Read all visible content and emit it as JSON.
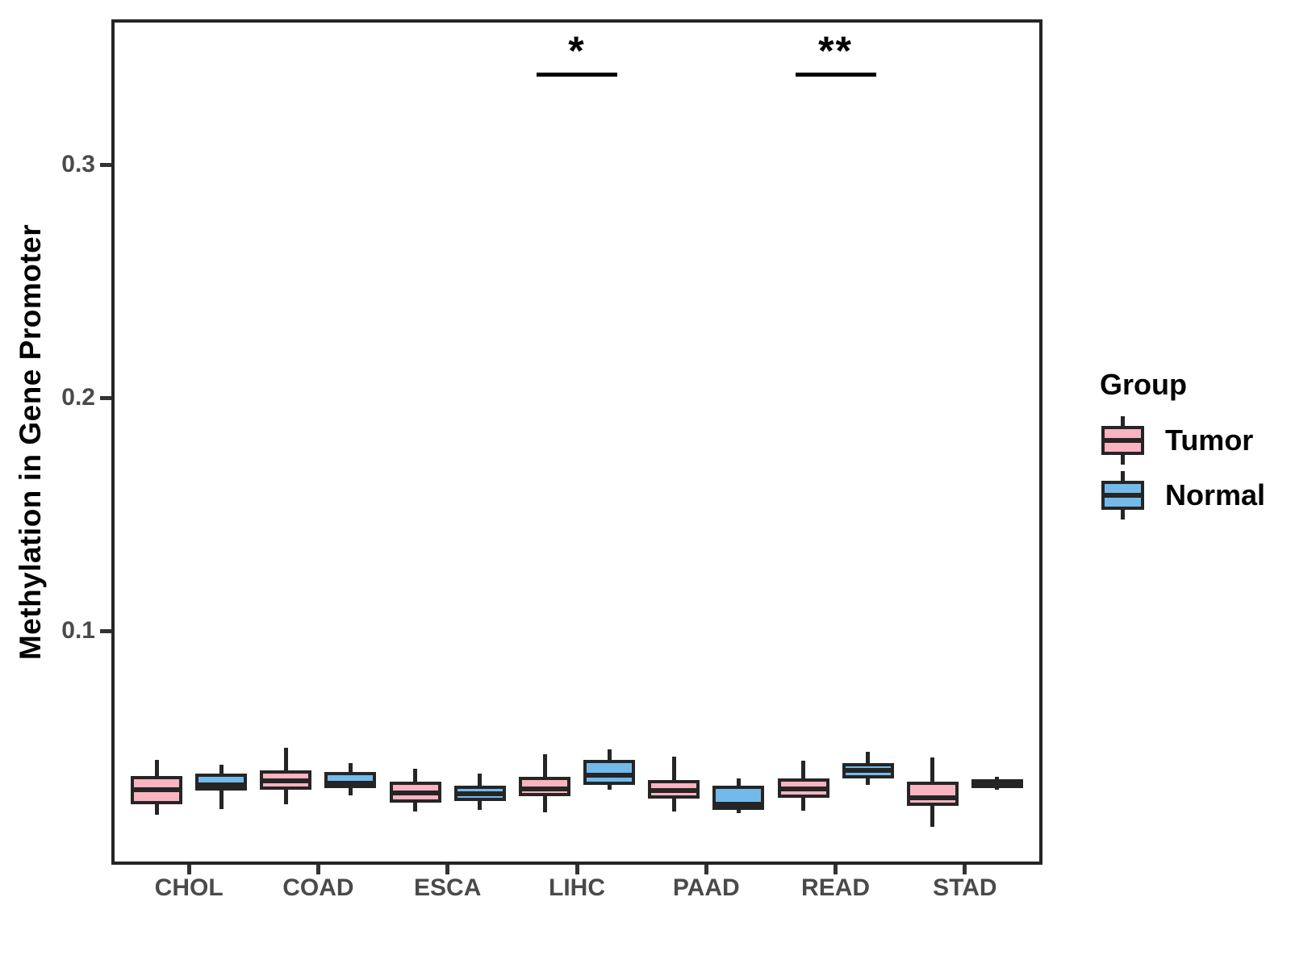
{
  "figure": {
    "y_axis_title": "Methylation in Gene Promoter",
    "legend": {
      "title": "Group",
      "items": [
        {
          "label": "Tumor",
          "color": "#FAB3C0"
        },
        {
          "label": "Normal",
          "color": "#73BAEB"
        }
      ]
    }
  },
  "style": {
    "background": "#ffffff",
    "box_border": "#252525",
    "axis_line_color": "#252525",
    "tick_mark_color": "#333333",
    "tick_label_color": "#4a4a4a",
    "title_color": "#000000",
    "tumor_fill": "#FAB3C0",
    "normal_fill": "#73BAEB"
  },
  "chart_data": {
    "type": "grouped_boxplot",
    "title": "",
    "xlabel": "",
    "ylabel": "Methylation in Gene Promoter",
    "categories": [
      "CHOL",
      "COAD",
      "ESCA",
      "LIHC",
      "PAAD",
      "READ",
      "STAD"
    ],
    "groups": [
      "Tumor",
      "Normal"
    ],
    "group_colors": {
      "Tumor": "#FAB3C0",
      "Normal": "#73BAEB"
    },
    "y_ticks": [
      0.1,
      0.2,
      0.3
    ],
    "ylim": [
      0.0,
      0.363
    ],
    "grid": false,
    "legend_position": "right",
    "series": [
      {
        "name": "Tumor",
        "boxes": [
          {
            "category": "CHOL",
            "min": 0.021,
            "q1": 0.0255,
            "median": 0.0318,
            "q3": 0.0377,
            "max": 0.0446
          },
          {
            "category": "COAD",
            "min": 0.0256,
            "q1": 0.0318,
            "median": 0.0356,
            "q3": 0.0401,
            "max": 0.0498
          },
          {
            "category": "ESCA",
            "min": 0.0225,
            "q1": 0.0263,
            "median": 0.0304,
            "q3": 0.0353,
            "max": 0.0408
          },
          {
            "category": "LIHC",
            "min": 0.0221,
            "q1": 0.029,
            "median": 0.0322,
            "q3": 0.0373,
            "max": 0.047
          },
          {
            "category": "PAAD",
            "min": 0.0225,
            "q1": 0.028,
            "median": 0.0315,
            "q3": 0.036,
            "max": 0.046
          },
          {
            "category": "READ",
            "min": 0.0228,
            "q1": 0.0284,
            "median": 0.0322,
            "q3": 0.0367,
            "max": 0.0443
          },
          {
            "category": "STAD",
            "min": 0.0159,
            "q1": 0.0249,
            "median": 0.0284,
            "q3": 0.0353,
            "max": 0.0456
          }
        ]
      },
      {
        "name": "Normal",
        "boxes": [
          {
            "category": "CHOL",
            "min": 0.0235,
            "q1": 0.0315,
            "median": 0.034,
            "q3": 0.0388,
            "max": 0.0426
          },
          {
            "category": "COAD",
            "min": 0.0294,
            "q1": 0.0325,
            "median": 0.0346,
            "q3": 0.0394,
            "max": 0.0433
          },
          {
            "category": "ESCA",
            "min": 0.0231,
            "q1": 0.027,
            "median": 0.03,
            "q3": 0.0336,
            "max": 0.0388
          },
          {
            "category": "LIHC",
            "min": 0.0318,
            "q1": 0.034,
            "median": 0.038,
            "q3": 0.0446,
            "max": 0.049
          },
          {
            "category": "PAAD",
            "min": 0.0218,
            "q1": 0.0231,
            "median": 0.0256,
            "q3": 0.0336,
            "max": 0.0367
          },
          {
            "category": "READ",
            "min": 0.0339,
            "q1": 0.0367,
            "median": 0.04,
            "q3": 0.0433,
            "max": 0.0481
          },
          {
            "category": "STAD",
            "min": 0.0318,
            "q1": 0.0325,
            "median": 0.0346,
            "q3": 0.0363,
            "max": 0.0374
          }
        ]
      }
    ],
    "annotations": [
      {
        "category": "LIHC",
        "label": "*"
      },
      {
        "category": "READ",
        "label": "**"
      }
    ]
  }
}
